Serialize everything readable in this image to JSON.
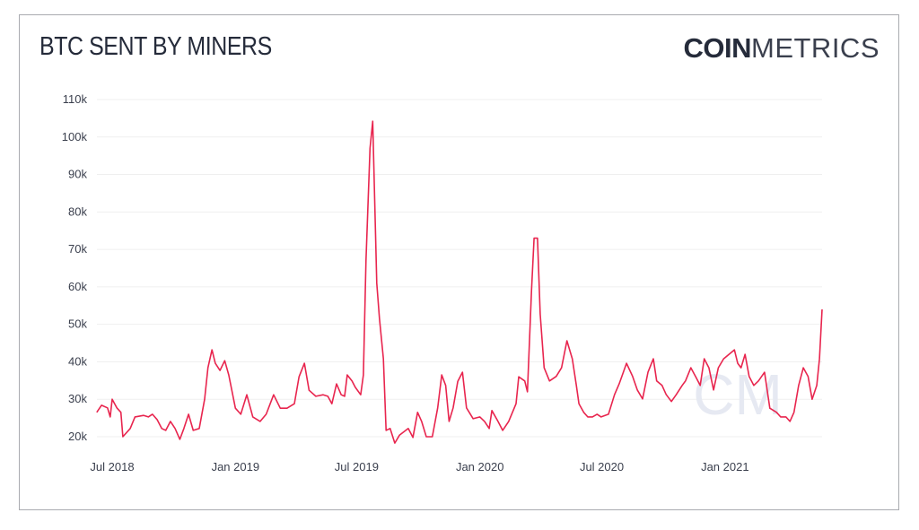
{
  "header": {
    "title": "BTC SENT BY MINERS",
    "logo_bold": "COIN",
    "logo_light": "METRICS"
  },
  "watermark": "CM",
  "chart_data": {
    "type": "line",
    "title": "BTC SENT BY MINERS",
    "xlabel": "",
    "ylabel": "",
    "ylim": [
      20000,
      110000
    ],
    "xlim": [
      "2018-06-08",
      "2021-05-26"
    ],
    "grid": true,
    "yticks": [
      20000,
      30000,
      40000,
      50000,
      60000,
      70000,
      80000,
      90000,
      100000,
      110000
    ],
    "ytick_labels": [
      "20k",
      "30k",
      "40k",
      "50k",
      "60k",
      "70k",
      "80k",
      "90k",
      "100k",
      "110k"
    ],
    "xticks": [
      "2018-07-01",
      "2019-01-01",
      "2019-07-01",
      "2020-01-01",
      "2020-07-01",
      "2021-01-01"
    ],
    "xtick_labels": [
      "Jul 2018",
      "Jan 2019",
      "Jul 2019",
      "Jan 2020",
      "Jul 2020",
      "Jan 2021"
    ],
    "line_color": "#e8254e",
    "series": [
      {
        "x": [
          "2018-06-08",
          "2018-06-15",
          "2018-06-24",
          "2018-06-28",
          "2018-07-01",
          "2018-07-08",
          "2018-07-14",
          "2018-07-17",
          "2018-07-28",
          "2018-08-04",
          "2018-08-17",
          "2018-08-24",
          "2018-08-30",
          "2018-09-06",
          "2018-09-13",
          "2018-09-19",
          "2018-09-26",
          "2018-10-03",
          "2018-10-10",
          "2018-10-16",
          "2018-10-23",
          "2018-10-30",
          "2018-11-08",
          "2018-11-16",
          "2018-11-21",
          "2018-11-27",
          "2018-12-02",
          "2018-12-09",
          "2018-12-16",
          "2018-12-22",
          "2019-01-01",
          "2019-01-09",
          "2019-01-18",
          "2019-01-27",
          "2019-02-07",
          "2019-02-16",
          "2019-02-27",
          "2019-03-09",
          "2019-03-19",
          "2019-03-30",
          "2019-04-06",
          "2019-04-14",
          "2019-04-21",
          "2019-05-01",
          "2019-05-12",
          "2019-05-19",
          "2019-05-25",
          "2019-06-01",
          "2019-06-08",
          "2019-06-13",
          "2019-06-17",
          "2019-06-24",
          "2019-06-29",
          "2019-07-07",
          "2019-07-11",
          "2019-07-15",
          "2019-07-21",
          "2019-07-25",
          "2019-07-29",
          "2019-07-31",
          "2019-08-04",
          "2019-08-10",
          "2019-08-14",
          "2019-08-20",
          "2019-08-27",
          "2019-09-03",
          "2019-09-16",
          "2019-09-23",
          "2019-09-30",
          "2019-10-06",
          "2019-10-13",
          "2019-10-22",
          "2019-10-30",
          "2019-11-05",
          "2019-11-11",
          "2019-11-16",
          "2019-11-22",
          "2019-11-29",
          "2019-12-06",
          "2019-12-12",
          "2019-12-22",
          "2020-01-01",
          "2020-01-08",
          "2020-01-15",
          "2020-01-19",
          "2020-01-28",
          "2020-02-04",
          "2020-02-13",
          "2020-02-24",
          "2020-02-28",
          "2020-03-08",
          "2020-03-12",
          "2020-03-18",
          "2020-03-22",
          "2020-03-27",
          "2020-03-31",
          "2020-04-06",
          "2020-04-14",
          "2020-04-24",
          "2020-05-02",
          "2020-05-10",
          "2020-05-18",
          "2020-05-24",
          "2020-05-28",
          "2020-06-04",
          "2020-06-10",
          "2020-06-17",
          "2020-06-24",
          "2020-06-30",
          "2020-07-11",
          "2020-07-20",
          "2020-07-27",
          "2020-08-07",
          "2020-08-16",
          "2020-08-23",
          "2020-08-31",
          "2020-09-08",
          "2020-09-16",
          "2020-09-21",
          "2020-09-29",
          "2020-10-05",
          "2020-10-13",
          "2020-10-20",
          "2020-10-29",
          "2020-11-03",
          "2020-11-11",
          "2020-11-18",
          "2020-11-25",
          "2020-12-01",
          "2020-12-08",
          "2020-12-15",
          "2020-12-22",
          "2020-12-30",
          "2021-01-07",
          "2021-01-15",
          "2021-01-20",
          "2021-01-25",
          "2021-01-31",
          "2021-02-06",
          "2021-02-13",
          "2021-02-20",
          "2021-03-01",
          "2021-03-09",
          "2021-03-19",
          "2021-03-25",
          "2021-04-02",
          "2021-04-08",
          "2021-04-14",
          "2021-04-21",
          "2021-04-28",
          "2021-05-05",
          "2021-05-11",
          "2021-05-18",
          "2021-05-22",
          "2021-05-26"
        ],
        "y": [
          26500,
          28400,
          27700,
          25300,
          30000,
          27700,
          26500,
          20000,
          22200,
          25300,
          25700,
          25300,
          26000,
          24600,
          22200,
          21700,
          24100,
          22200,
          19300,
          22200,
          26000,
          21700,
          22200,
          30000,
          38400,
          43200,
          39600,
          37700,
          40300,
          36500,
          27600,
          26000,
          31200,
          25300,
          24100,
          26000,
          31200,
          27600,
          27600,
          28800,
          36000,
          39600,
          32400,
          30800,
          31200,
          30800,
          28800,
          34100,
          31200,
          30800,
          36500,
          34900,
          33200,
          31200,
          36500,
          67000,
          97000,
          104200,
          75500,
          61000,
          51600,
          40800,
          21700,
          22200,
          18300,
          20400,
          22200,
          19800,
          26500,
          24100,
          20000,
          20000,
          27700,
          36500,
          33700,
          24100,
          27700,
          34800,
          37200,
          27700,
          24800,
          25300,
          24100,
          22200,
          27000,
          24100,
          21700,
          24100,
          28800,
          36000,
          34900,
          32000,
          58800,
          73000,
          73000,
          52800,
          38400,
          34900,
          36100,
          38400,
          45600,
          40800,
          33700,
          28800,
          26500,
          25300,
          25300,
          26000,
          25300,
          26000,
          31200,
          34100,
          39600,
          36100,
          32500,
          30100,
          37200,
          40800,
          34900,
          33700,
          31300,
          29400,
          31200,
          33700,
          34900,
          38400,
          36100,
          33700,
          40800,
          38400,
          32500,
          38400,
          40800,
          42000,
          43200,
          39600,
          38400,
          42000,
          36100,
          33700,
          34900,
          37200,
          27600,
          26500,
          25300,
          25300,
          24100,
          26500,
          33700,
          38400,
          36100,
          30000,
          33700,
          40800,
          54000
        ]
      }
    ]
  }
}
